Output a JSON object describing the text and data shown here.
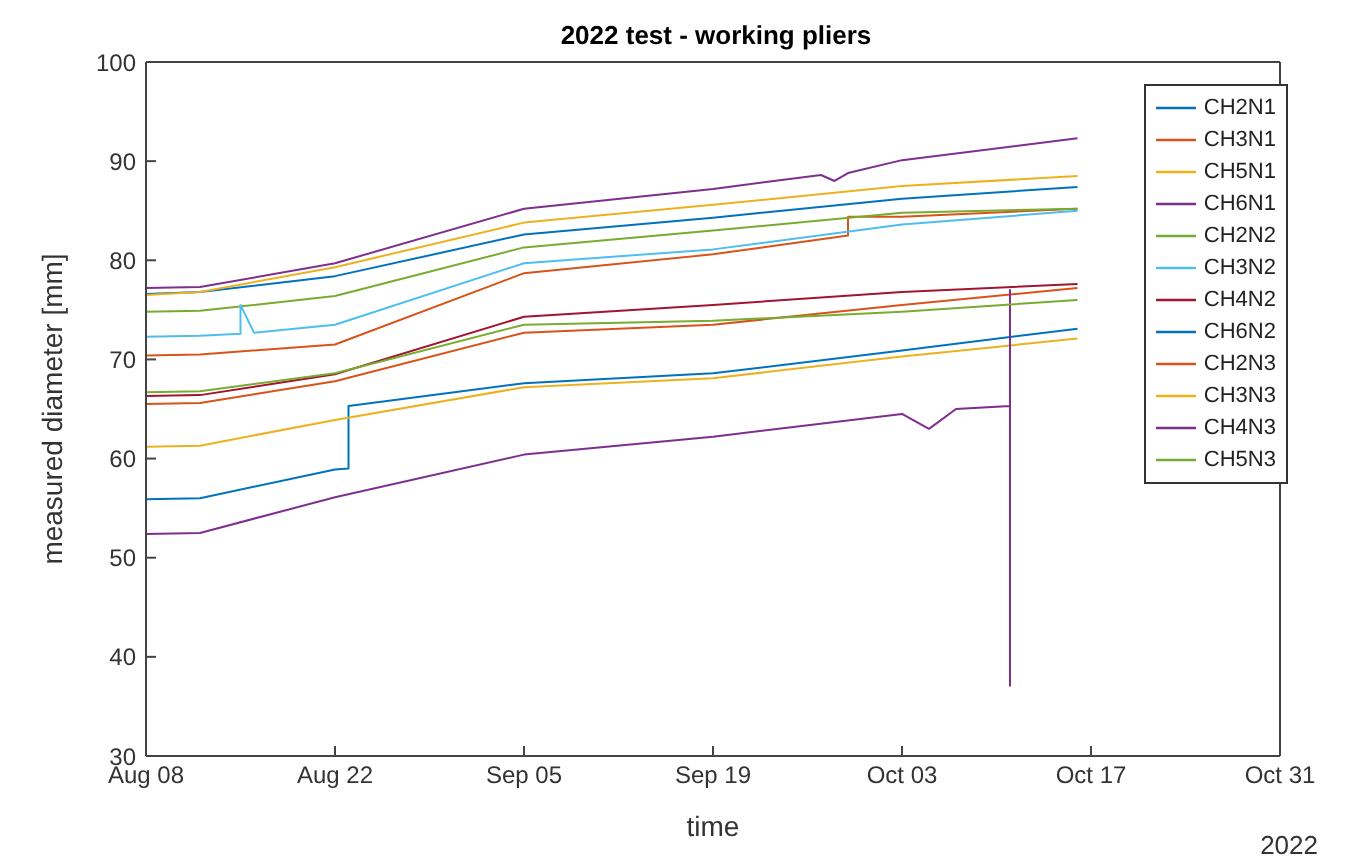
{
  "chart_data": {
    "type": "line",
    "title": "2022 test - working pliers",
    "xlabel": "time",
    "ylabel": "measured diameter [mm]",
    "xlim": [
      "2022-08-08",
      "2022-10-31"
    ],
    "xticks": [
      {
        "value": "2022-08-08",
        "label": "Aug 08"
      },
      {
        "value": "2022-08-22",
        "label": "Aug 22"
      },
      {
        "value": "2022-09-05",
        "label": "Sep 05"
      },
      {
        "value": "2022-09-19",
        "label": "Sep 19"
      },
      {
        "value": "2022-10-03",
        "label": "Oct 03"
      },
      {
        "value": "2022-10-17",
        "label": "Oct 17"
      },
      {
        "value": "2022-10-31",
        "label": "Oct 31"
      }
    ],
    "ylim": [
      30,
      100
    ],
    "yticks": [
      30,
      40,
      50,
      60,
      70,
      80,
      90,
      100
    ],
    "grid": false,
    "legend": "top right",
    "marker": "none",
    "line_style": "solid",
    "annotations": [
      "2022"
    ],
    "series": [
      {
        "name": "CH2N1",
        "color": "#0072bd",
        "x": [
          "2022-08-08",
          "2022-08-12",
          "2022-08-22",
          "2022-09-05",
          "2022-09-19",
          "2022-10-03",
          "2022-10-16"
        ],
        "values": [
          76.6,
          76.8,
          78.4,
          82.6,
          84.3,
          86.2,
          87.4
        ]
      },
      {
        "name": "CH3N1",
        "color": "#d95319",
        "x": [
          "2022-08-08",
          "2022-08-12",
          "2022-08-22",
          "2022-09-05",
          "2022-09-19",
          "2022-09-29",
          "2022-09-29",
          "2022-10-03",
          "2022-10-16"
        ],
        "values": [
          70.4,
          70.5,
          71.5,
          78.7,
          80.6,
          82.5,
          84.4,
          84.4,
          85.2
        ]
      },
      {
        "name": "CH5N1",
        "color": "#edb120",
        "x": [
          "2022-08-08",
          "2022-08-12",
          "2022-08-22",
          "2022-09-05",
          "2022-09-19",
          "2022-10-03",
          "2022-10-16"
        ],
        "values": [
          76.5,
          76.8,
          79.3,
          83.8,
          85.6,
          87.5,
          88.5
        ]
      },
      {
        "name": "CH6N1",
        "color": "#7e2f8e",
        "x": [
          "2022-08-08",
          "2022-08-12",
          "2022-08-22",
          "2022-09-05",
          "2022-09-19",
          "2022-09-27",
          "2022-09-28",
          "2022-09-29",
          "2022-10-03",
          "2022-10-16"
        ],
        "values": [
          77.2,
          77.3,
          79.7,
          85.2,
          87.2,
          88.6,
          88.0,
          88.8,
          90.1,
          92.3
        ]
      },
      {
        "name": "CH2N2",
        "color": "#77ac30",
        "x": [
          "2022-08-08",
          "2022-08-12",
          "2022-08-22",
          "2022-09-05",
          "2022-09-19",
          "2022-10-03",
          "2022-10-16"
        ],
        "values": [
          74.8,
          74.9,
          76.4,
          81.3,
          83,
          84.8,
          85.2
        ]
      },
      {
        "name": "CH3N2",
        "color": "#4dbeee",
        "x": [
          "2022-08-08",
          "2022-08-12",
          "2022-08-15",
          "2022-08-15",
          "2022-08-16",
          "2022-08-22",
          "2022-09-05",
          "2022-09-19",
          "2022-10-03",
          "2022-10-16"
        ],
        "values": [
          72.3,
          72.4,
          72.6,
          75.5,
          72.7,
          73.5,
          79.7,
          81.1,
          83.6,
          85
        ]
      },
      {
        "name": "CH4N2",
        "color": "#a2142f",
        "x": [
          "2022-08-08",
          "2022-08-12",
          "2022-08-22",
          "2022-09-05",
          "2022-09-19",
          "2022-10-03",
          "2022-10-16"
        ],
        "values": [
          66.3,
          66.4,
          68.5,
          74.3,
          75.5,
          76.8,
          77.6
        ]
      },
      {
        "name": "CH6N2",
        "color": "#0072bd",
        "x": [
          "2022-08-08",
          "2022-08-12",
          "2022-08-22",
          "2022-08-23",
          "2022-08-23",
          "2022-09-05",
          "2022-09-19",
          "2022-10-03",
          "2022-10-16"
        ],
        "values": [
          55.9,
          56.0,
          58.9,
          59.0,
          65.3,
          67.6,
          68.6,
          70.9,
          73.1
        ]
      },
      {
        "name": "CH2N3",
        "color": "#d95319",
        "x": [
          "2022-08-08",
          "2022-08-12",
          "2022-08-22",
          "2022-09-05",
          "2022-09-19",
          "2022-10-03",
          "2022-10-16"
        ],
        "values": [
          65.5,
          65.6,
          67.8,
          72.7,
          73.5,
          75.5,
          77.2
        ]
      },
      {
        "name": "CH3N3",
        "color": "#edb120",
        "x": [
          "2022-08-08",
          "2022-08-12",
          "2022-08-22",
          "2022-09-05",
          "2022-09-19",
          "2022-10-03",
          "2022-10-16"
        ],
        "values": [
          61.2,
          61.3,
          63.9,
          67.2,
          68.1,
          70.3,
          72.1
        ]
      },
      {
        "name": "CH4N3",
        "color": "#7e2f8e",
        "x": [
          "2022-08-08",
          "2022-08-12",
          "2022-08-22",
          "2022-09-05",
          "2022-09-19",
          "2022-10-03",
          "2022-10-05",
          "2022-10-07",
          "2022-10-11",
          "2022-10-11",
          "2022-10-11"
        ],
        "values": [
          52.4,
          52.5,
          56.1,
          60.4,
          62.2,
          64.5,
          63.0,
          65,
          65.3,
          77,
          37
        ]
      },
      {
        "name": "CH5N3",
        "color": "#77ac30",
        "x": [
          "2022-08-08",
          "2022-08-12",
          "2022-08-22",
          "2022-09-05",
          "2022-09-19",
          "2022-10-03",
          "2022-10-16"
        ],
        "values": [
          66.7,
          66.8,
          68.6,
          73.5,
          73.9,
          74.8,
          76.0
        ]
      }
    ]
  }
}
